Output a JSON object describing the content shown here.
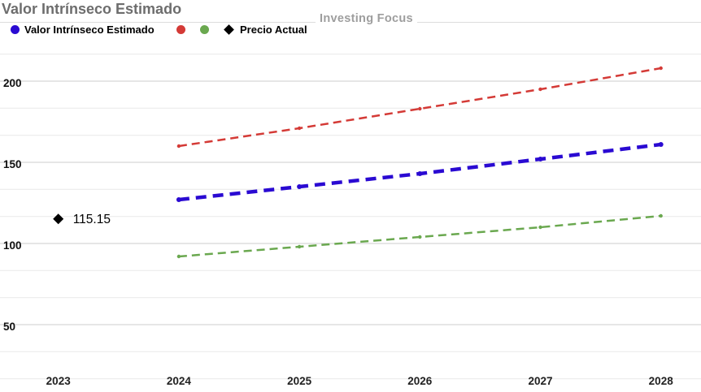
{
  "chart": {
    "title": "Valor Intrínseco Estimado",
    "watermark": "Investing Focus",
    "legend": {
      "series1_label": "Valor Intrínseco Estimado",
      "point_label": "Precio Actual"
    }
  },
  "chart_data": {
    "type": "line",
    "title": "Valor Intrínseco Estimado",
    "watermark": "Investing Focus",
    "legend_position": "top-left",
    "grid": "major gridlines at labeled ticks, 2 minor gridlines between (thirds)",
    "x": [
      2024,
      2025,
      2026,
      2027,
      2028
    ],
    "xticks": [
      2023,
      2024,
      2025,
      2026,
      2027,
      2028
    ],
    "yticks": [
      50,
      100,
      150,
      200
    ],
    "ylim": [
      0,
      233
    ],
    "series": [
      {
        "name": "Valor Intrínseco Estimado",
        "color": "#2a0ad2",
        "style": "dashed",
        "width": 4.5,
        "dash": "13,8",
        "values": [
          127,
          135,
          143,
          152,
          161
        ]
      },
      {
        "name": "",
        "color": "#d43a36",
        "style": "dashed",
        "width": 2.5,
        "dash": "10,6",
        "values": [
          160,
          171,
          183,
          195,
          208
        ]
      },
      {
        "name": "",
        "color": "#6aa84f",
        "style": "dashed",
        "width": 2.5,
        "dash": "10,6",
        "values": [
          92,
          98,
          104,
          110,
          117
        ]
      }
    ],
    "point_series": {
      "name": "Precio Actual",
      "color": "#000000",
      "marker": "diamond",
      "x": 2023,
      "value": 115.15,
      "label": "115.15"
    },
    "colors": {
      "major_gridline": "#cccccc",
      "minor_gridline": "#e9e9e9",
      "axis_label": "#111111",
      "title": "#6d6d6d",
      "watermark": "#9e9e9e"
    }
  }
}
